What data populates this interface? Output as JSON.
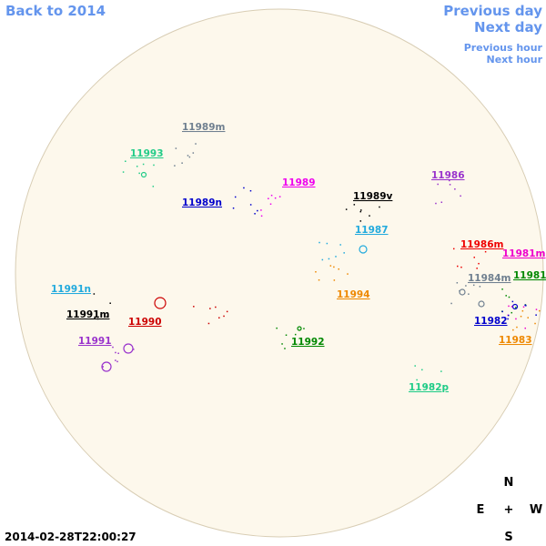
{
  "nav": {
    "back": "Back to 2014",
    "previous_day": "Previous day",
    "next_day": "Next day",
    "previous_hour": "Previous hour",
    "next_hour": "Next hour"
  },
  "regions": [
    {
      "label": "11989m",
      "color": "#708090"
    },
    {
      "label": "11993",
      "color": "#22cc88"
    },
    {
      "label": "11989",
      "color": "#ee00ee"
    },
    {
      "label": "11986",
      "color": "#9933cc"
    },
    {
      "label": "11989v",
      "color": "#000000"
    },
    {
      "label": "11989n",
      "color": "#0000cc"
    },
    {
      "label": "11987",
      "color": "#22aadd"
    },
    {
      "label": "11986m",
      "color": "#ee0000"
    },
    {
      "label": "11981m",
      "color": "#ee00cc"
    },
    {
      "label": "11984m",
      "color": "#708090"
    },
    {
      "label": "11981",
      "color": "#008800"
    },
    {
      "label": "11991n",
      "color": "#22aadd"
    },
    {
      "label": "11994",
      "color": "#ee8800"
    },
    {
      "label": "11991m",
      "color": "#000000"
    },
    {
      "label": "11990",
      "color": "#cc0000"
    },
    {
      "label": "11982",
      "color": "#0000cc"
    },
    {
      "label": "11992",
      "color": "#008800"
    },
    {
      "label": "11991",
      "color": "#9933cc"
    },
    {
      "label": "11983",
      "color": "#ee8800"
    },
    {
      "label": "11982p",
      "color": "#22cc88"
    }
  ],
  "compass": {
    "north": "N",
    "east": "E",
    "center": "+",
    "west": "W",
    "south": "S"
  },
  "timestamp": "2014-02-28T22:00:27"
}
